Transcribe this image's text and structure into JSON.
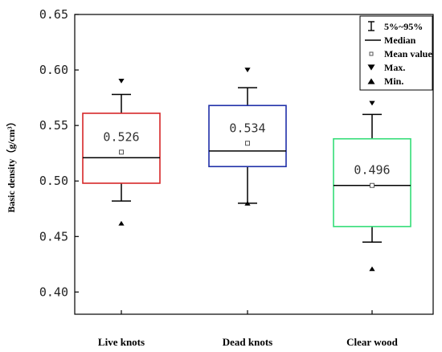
{
  "chart_data": {
    "type": "box",
    "ylabel": "Basic density（g/cm³）",
    "ylim": [
      0.38,
      0.65
    ],
    "yticks": [
      "0.40",
      "0.45",
      "0.50",
      "0.55",
      "0.60",
      "0.65"
    ],
    "ytick_values": [
      0.4,
      0.45,
      0.5,
      0.55,
      0.6,
      0.65
    ],
    "categories": [
      "Live knots",
      "Dead knots",
      "Clear wood"
    ],
    "boxes": [
      {
        "category": "Live knots",
        "color": "#d62728",
        "whisker_low": 0.482,
        "q1": 0.498,
        "median": 0.521,
        "q3": 0.561,
        "whisker_high": 0.578,
        "mean": 0.526,
        "mean_label": "0.526",
        "max": 0.59,
        "min": 0.462
      },
      {
        "category": "Dead knots",
        "color": "#1f2fa8",
        "whisker_low": 0.48,
        "q1": 0.513,
        "median": 0.527,
        "q3": 0.568,
        "whisker_high": 0.584,
        "mean": 0.534,
        "mean_label": "0.534",
        "max": 0.6,
        "min": 0.48
      },
      {
        "category": "Clear wood",
        "color": "#33dd77",
        "whisker_low": 0.445,
        "q1": 0.459,
        "median": 0.496,
        "q3": 0.538,
        "whisker_high": 0.56,
        "mean": 0.496,
        "mean_label": "0.496",
        "max": 0.57,
        "min": 0.421
      }
    ],
    "legend": {
      "placement": "top-right",
      "entries": [
        "5%~95%",
        "Median",
        "Mean value",
        "Max.",
        "Min."
      ]
    }
  }
}
